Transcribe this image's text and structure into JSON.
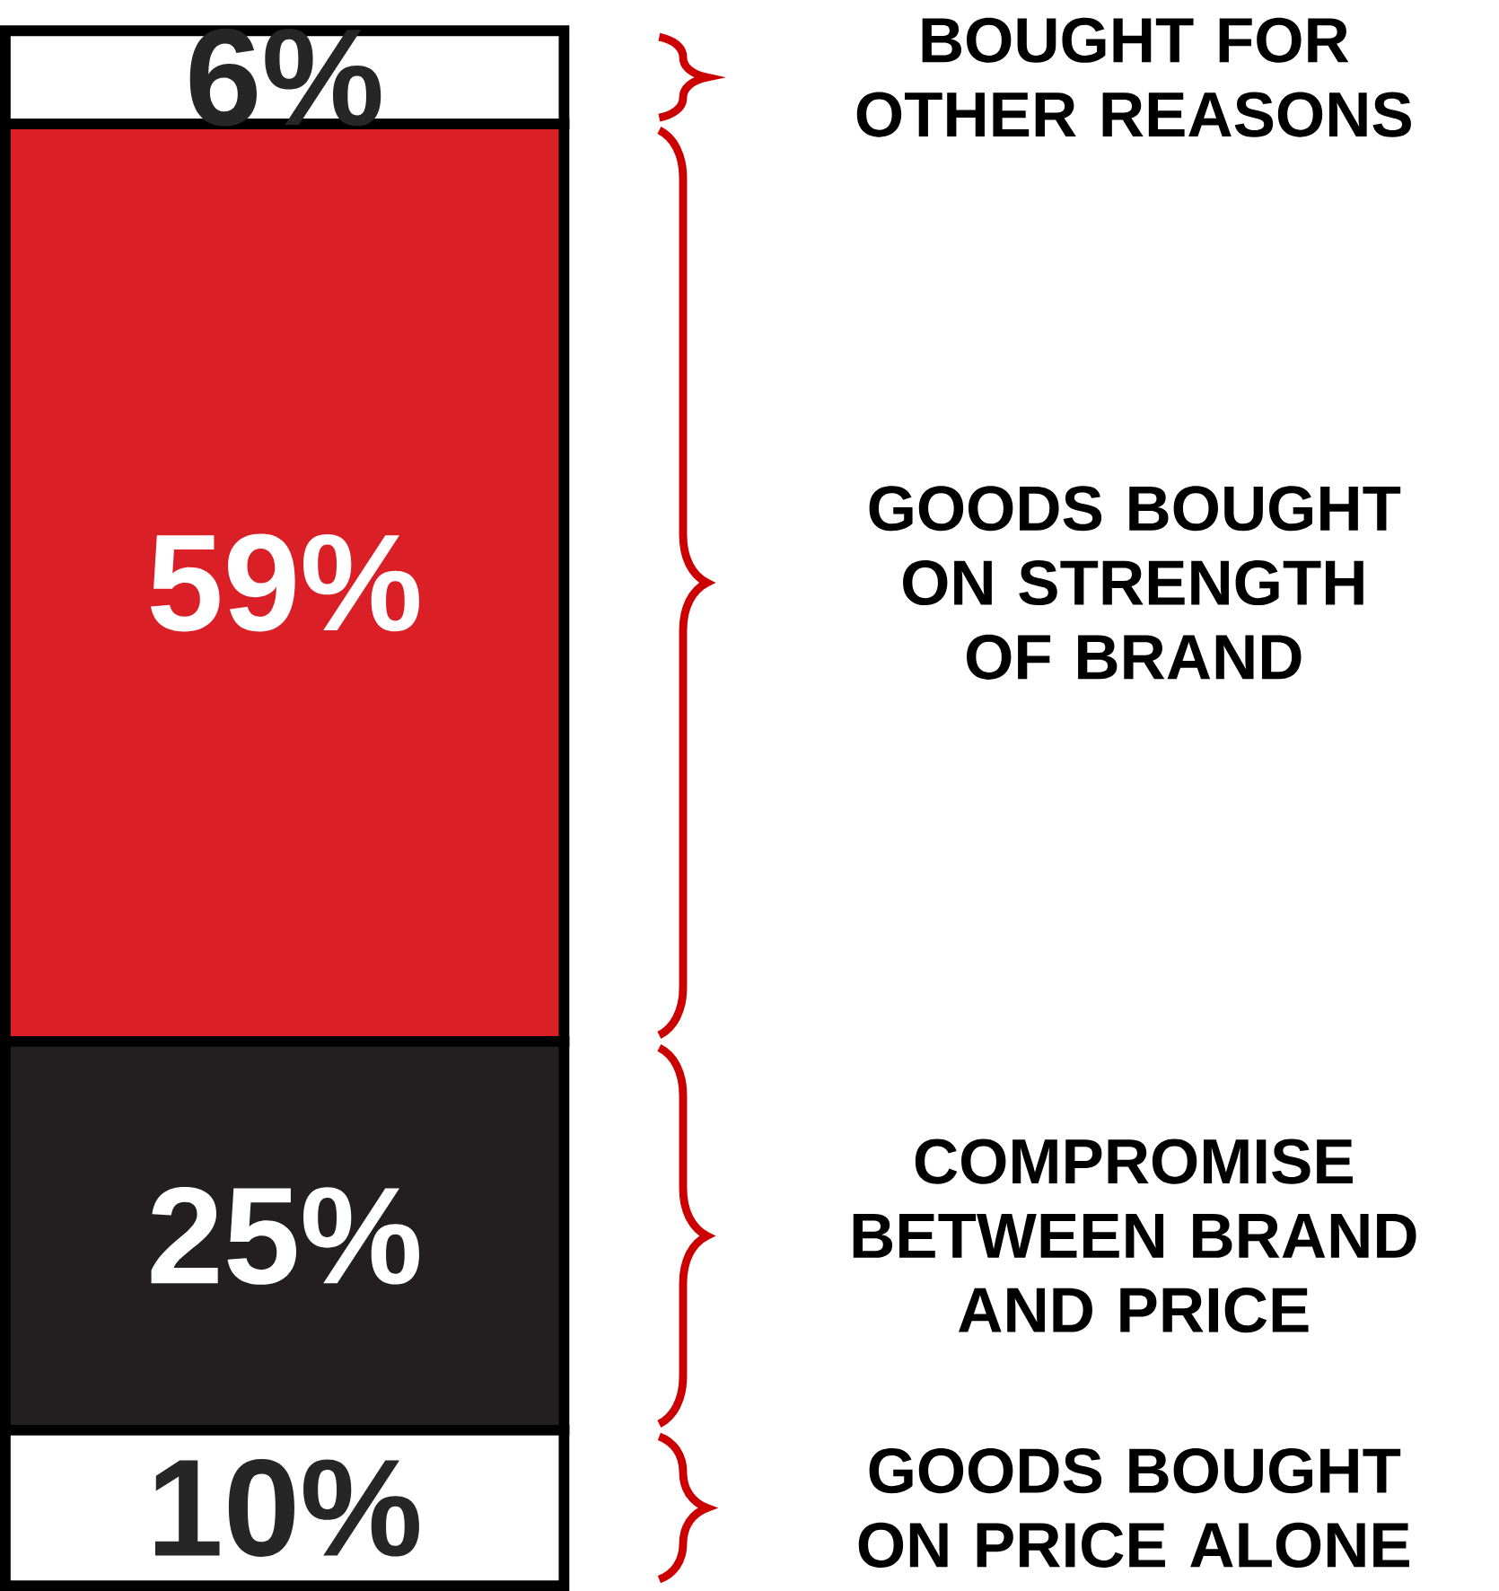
{
  "chart_data": {
    "type": "bar",
    "stacked": true,
    "categories": [
      null
    ],
    "series": [
      {
        "name": "GOODS BOUGHT ON PRICE ALONE",
        "color": "#ffffff",
        "values": [
          10
        ],
        "value_labels": [
          "10%"
        ]
      },
      {
        "name": "COMPROMISE BETWEEN BRAND AND PRICE",
        "color": "#231f20",
        "values": [
          25
        ],
        "value_labels": [
          "25%"
        ]
      },
      {
        "name": "GOODS BOUGHT ON STRENGTH OF BRAND",
        "color": "#da1f26",
        "values": [
          59
        ],
        "value_labels": [
          "59%"
        ]
      },
      {
        "name": "BOUGHT FOR OTHER REASONS",
        "color": "#ffffff",
        "values": [
          6
        ],
        "value_labels": [
          "6%"
        ]
      }
    ]
  }
}
